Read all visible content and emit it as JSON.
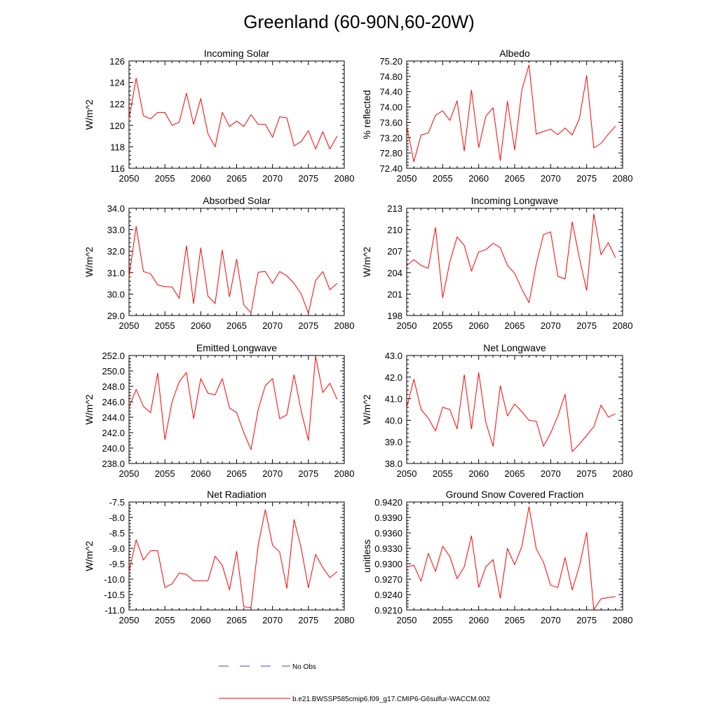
{
  "figure": {
    "title": "Greenland (60-90N,60-20W)",
    "line_color": "#ff0000",
    "obs_color": "#4444cc",
    "legend": {
      "obs_label": "No Obs",
      "model_label": "b.e21.BWSSP585cmip6.f09_g17.CMIP6-G6sulfur-WACCM.002"
    }
  },
  "chart_data": [
    {
      "type": "line",
      "title": "Incoming Solar",
      "ylabel": "W/m^2",
      "xlim": [
        2050,
        2080
      ],
      "ylim": [
        116,
        126
      ],
      "xticks": [
        2050,
        2055,
        2060,
        2065,
        2070,
        2075,
        2080
      ],
      "xtick_labels": [
        "2050",
        "2055",
        "2060",
        "2065",
        "2070",
        "2075",
        "2080"
      ],
      "yticks": [
        116,
        118,
        120,
        122,
        124,
        126
      ],
      "ytick_labels": [
        "116",
        "118",
        "120",
        "122",
        "124",
        "126"
      ],
      "grid": false,
      "x": [
        2050,
        2051,
        2052,
        2053,
        2054,
        2055,
        2056,
        2057,
        2058,
        2059,
        2060,
        2061,
        2062,
        2063,
        2064,
        2065,
        2066,
        2067,
        2068,
        2069,
        2070,
        2071,
        2072,
        2073,
        2074,
        2075,
        2076,
        2077,
        2078,
        2079
      ],
      "series": [
        {
          "name": "b.e21.BWSSP585cmip6.f09_g17.CMIP6-G6sulfur-WACCM.002",
          "values": [
            120.6,
            124.4,
            120.9,
            120.6,
            121.2,
            121.2,
            120.0,
            120.3,
            123.0,
            120.1,
            122.5,
            119.2,
            118.0,
            121.2,
            119.9,
            120.4,
            119.9,
            121.0,
            120.1,
            120.1,
            118.9,
            120.8,
            120.7,
            118.1,
            118.5,
            119.5,
            117.8,
            119.4,
            117.8,
            119.0
          ]
        }
      ]
    },
    {
      "type": "line",
      "title": "Albedo",
      "ylabel": "% reflected",
      "xlim": [
        2050,
        2080
      ],
      "ylim": [
        72.4,
        75.2
      ],
      "xticks": [
        2050,
        2055,
        2060,
        2065,
        2070,
        2075,
        2080
      ],
      "xtick_labels": [
        "2050",
        "2055",
        "2060",
        "2065",
        "2070",
        "2075",
        "2080"
      ],
      "yticks": [
        72.4,
        72.8,
        73.2,
        73.6,
        74.0,
        74.4,
        74.8,
        75.2
      ],
      "ytick_labels": [
        "72.40",
        "72.80",
        "73.20",
        "73.60",
        "74.00",
        "74.40",
        "74.80",
        "75.20"
      ],
      "grid": false,
      "x": [
        2050,
        2051,
        2052,
        2053,
        2054,
        2055,
        2056,
        2057,
        2058,
        2059,
        2060,
        2061,
        2062,
        2063,
        2064,
        2065,
        2066,
        2067,
        2068,
        2069,
        2070,
        2071,
        2072,
        2073,
        2074,
        2075,
        2076,
        2077,
        2078,
        2079
      ],
      "series": [
        {
          "name": "b.e21.BWSSP585cmip6.f09_g17.CMIP6-G6sulfur-WACCM.002",
          "values": [
            73.5,
            72.57,
            73.27,
            73.32,
            73.78,
            73.9,
            73.65,
            74.16,
            72.85,
            74.44,
            72.94,
            73.76,
            73.98,
            72.6,
            74.15,
            72.88,
            74.45,
            75.1,
            73.29,
            73.36,
            73.42,
            73.28,
            73.45,
            73.27,
            73.7,
            74.82,
            72.93,
            73.05,
            73.29,
            73.5
          ]
        }
      ]
    },
    {
      "type": "line",
      "title": "Absorbed Solar",
      "ylabel": "W/m^2",
      "xlim": [
        2050,
        2080
      ],
      "ylim": [
        29.0,
        34.0
      ],
      "xticks": [
        2050,
        2055,
        2060,
        2065,
        2070,
        2075,
        2080
      ],
      "xtick_labels": [
        "2050",
        "2055",
        "2060",
        "2065",
        "2070",
        "2075",
        "2080"
      ],
      "yticks": [
        29,
        30,
        31,
        32,
        33,
        34
      ],
      "ytick_labels": [
        "29.0",
        "30.0",
        "31.0",
        "32.0",
        "33.0",
        "34.0"
      ],
      "grid": false,
      "x": [
        2050,
        2051,
        2052,
        2053,
        2054,
        2055,
        2056,
        2057,
        2058,
        2059,
        2060,
        2061,
        2062,
        2063,
        2064,
        2065,
        2066,
        2067,
        2068,
        2069,
        2070,
        2071,
        2072,
        2073,
        2074,
        2075,
        2076,
        2077,
        2078,
        2079
      ],
      "series": [
        {
          "name": "b.e21.BWSSP585cmip6.f09_g17.CMIP6-G6sulfur-WACCM.002",
          "values": [
            30.8,
            33.15,
            31.05,
            30.95,
            30.42,
            30.35,
            30.33,
            29.8,
            32.25,
            29.56,
            32.15,
            29.9,
            29.56,
            32.05,
            29.88,
            31.62,
            29.5,
            29.12,
            31.02,
            31.05,
            30.5,
            31.05,
            30.85,
            30.5,
            30.0,
            29.1,
            30.63,
            31.05,
            30.2,
            30.5
          ]
        }
      ]
    },
    {
      "type": "line",
      "title": "Incoming Longwave",
      "ylabel": "W/m^2",
      "xlim": [
        2050,
        2080
      ],
      "ylim": [
        198,
        213
      ],
      "xticks": [
        2050,
        2055,
        2060,
        2065,
        2070,
        2075,
        2080
      ],
      "xtick_labels": [
        "2050",
        "2055",
        "2060",
        "2065",
        "2070",
        "2075",
        "2080"
      ],
      "yticks": [
        198,
        201,
        204,
        207,
        210,
        213
      ],
      "ytick_labels": [
        "198",
        "201",
        "204",
        "207",
        "210",
        "213"
      ],
      "grid": false,
      "x": [
        2050,
        2051,
        2052,
        2053,
        2054,
        2055,
        2056,
        2057,
        2058,
        2059,
        2060,
        2061,
        2062,
        2063,
        2064,
        2065,
        2066,
        2067,
        2068,
        2069,
        2070,
        2071,
        2072,
        2073,
        2074,
        2075,
        2076,
        2077,
        2078,
        2079
      ],
      "series": [
        {
          "name": "b.e21.BWSSP585cmip6.f09_g17.CMIP6-G6sulfur-WACCM.002",
          "values": [
            205.0,
            205.8,
            205.0,
            204.6,
            210.3,
            200.5,
            205.5,
            209.0,
            207.8,
            204.2,
            206.9,
            207.2,
            208.1,
            207.5,
            205.0,
            203.9,
            201.7,
            199.8,
            205.2,
            209.3,
            209.7,
            203.5,
            203.1,
            211.1,
            206.0,
            201.5,
            212.2,
            206.5,
            208.2,
            206.1
          ]
        }
      ]
    },
    {
      "type": "line",
      "title": "Emitted Longwave",
      "ylabel": "W/m^2",
      "xlim": [
        2050,
        2080
      ],
      "ylim": [
        238,
        252
      ],
      "xticks": [
        2050,
        2055,
        2060,
        2065,
        2070,
        2075,
        2080
      ],
      "xtick_labels": [
        "2050",
        "2055",
        "2060",
        "2065",
        "2070",
        "2075",
        "2080"
      ],
      "yticks": [
        238,
        240,
        242,
        244,
        246,
        248,
        250,
        252
      ],
      "ytick_labels": [
        "238.0",
        "240.0",
        "242.0",
        "244.0",
        "246.0",
        "248.0",
        "250.0",
        "252.0"
      ],
      "grid": false,
      "x": [
        2050,
        2051,
        2052,
        2053,
        2054,
        2055,
        2056,
        2057,
        2058,
        2059,
        2060,
        2061,
        2062,
        2063,
        2064,
        2065,
        2066,
        2067,
        2068,
        2069,
        2070,
        2071,
        2072,
        2073,
        2074,
        2075,
        2076,
        2077,
        2078,
        2079
      ],
      "series": [
        {
          "name": "b.e21.BWSSP585cmip6.f09_g17.CMIP6-G6sulfur-WACCM.002",
          "values": [
            245.3,
            247.6,
            245.4,
            244.6,
            249.7,
            241.1,
            246.0,
            248.6,
            249.8,
            243.8,
            249.0,
            247.1,
            246.9,
            249.0,
            245.2,
            244.6,
            242.0,
            239.8,
            245.0,
            248.1,
            249.0,
            243.8,
            244.3,
            249.5,
            244.8,
            241.0,
            251.9,
            247.2,
            248.4,
            246.3
          ]
        }
      ]
    },
    {
      "type": "line",
      "title": "Net Longwave",
      "ylabel": "W/m^2",
      "xlim": [
        2050,
        2080
      ],
      "ylim": [
        38.0,
        43.0
      ],
      "xticks": [
        2050,
        2055,
        2060,
        2065,
        2070,
        2075,
        2080
      ],
      "xtick_labels": [
        "2050",
        "2055",
        "2060",
        "2065",
        "2070",
        "2075",
        "2080"
      ],
      "yticks": [
        38,
        39,
        40,
        41,
        42,
        43
      ],
      "ytick_labels": [
        "38.0",
        "39.0",
        "40.0",
        "41.0",
        "42.0",
        "43.0"
      ],
      "grid": false,
      "x": [
        2050,
        2051,
        2052,
        2053,
        2054,
        2055,
        2056,
        2057,
        2058,
        2059,
        2060,
        2061,
        2062,
        2063,
        2064,
        2065,
        2066,
        2067,
        2068,
        2069,
        2070,
        2071,
        2072,
        2073,
        2074,
        2075,
        2076,
        2077,
        2078,
        2079
      ],
      "series": [
        {
          "name": "b.e21.BWSSP585cmip6.f09_g17.CMIP6-G6sulfur-WACCM.002",
          "values": [
            40.6,
            41.9,
            40.5,
            40.1,
            39.5,
            40.6,
            40.5,
            39.6,
            42.1,
            39.6,
            42.2,
            39.9,
            38.8,
            41.6,
            40.2,
            40.75,
            40.4,
            40.0,
            39.95,
            38.8,
            39.4,
            40.2,
            41.2,
            38.55,
            38.9,
            39.3,
            39.7,
            40.7,
            40.15,
            40.3
          ]
        }
      ]
    },
    {
      "type": "line",
      "title": "Net Radiation",
      "ylabel": "W/m^2",
      "xlim": [
        2050,
        2080
      ],
      "ylim": [
        -11.0,
        -7.5
      ],
      "xticks": [
        2050,
        2055,
        2060,
        2065,
        2070,
        2075,
        2080
      ],
      "xtick_labels": [
        "2050",
        "2055",
        "2060",
        "2065",
        "2070",
        "2075",
        "2080"
      ],
      "yticks": [
        -11.0,
        -10.5,
        -10.0,
        -9.5,
        -9.0,
        -8.5,
        -8.0,
        -7.5
      ],
      "ytick_labels": [
        "-11.0",
        "-10.5",
        "-10.0",
        "-9.5",
        "-9.0",
        "-8.5",
        "-8.0",
        "-7.5"
      ],
      "grid": false,
      "x": [
        2050,
        2051,
        2052,
        2053,
        2054,
        2055,
        2056,
        2057,
        2058,
        2059,
        2060,
        2061,
        2062,
        2063,
        2064,
        2065,
        2066,
        2067,
        2068,
        2069,
        2070,
        2071,
        2072,
        2073,
        2074,
        2075,
        2076,
        2077,
        2078,
        2079
      ],
      "series": [
        {
          "name": "b.e21.BWSSP585cmip6.f09_g17.CMIP6-G6sulfur-WACCM.002",
          "values": [
            -9.75,
            -8.72,
            -9.38,
            -9.08,
            -9.08,
            -10.27,
            -10.15,
            -9.8,
            -9.85,
            -10.05,
            -10.05,
            -10.05,
            -9.26,
            -9.55,
            -10.35,
            -9.1,
            -10.9,
            -10.92,
            -8.9,
            -7.75,
            -8.9,
            -9.12,
            -10.3,
            -8.07,
            -9.0,
            -10.28,
            -9.2,
            -9.62,
            -9.95,
            -9.76
          ]
        }
      ]
    },
    {
      "type": "line",
      "title": "Ground Snow Covered Fraction",
      "ylabel": "unitless",
      "xlim": [
        2050,
        2080
      ],
      "ylim": [
        0.921,
        0.942
      ],
      "xticks": [
        2050,
        2055,
        2060,
        2065,
        2070,
        2075,
        2080
      ],
      "xtick_labels": [
        "2050",
        "2055",
        "2060",
        "2065",
        "2070",
        "2075",
        "2080"
      ],
      "yticks": [
        0.921,
        0.924,
        0.927,
        0.93,
        0.933,
        0.936,
        0.939,
        0.942
      ],
      "ytick_labels": [
        "0.9210",
        "0.9240",
        "0.9270",
        "0.9300",
        "0.9330",
        "0.9360",
        "0.9390",
        "0.9420"
      ],
      "grid": false,
      "x": [
        2050,
        2051,
        2052,
        2053,
        2054,
        2055,
        2056,
        2057,
        2058,
        2059,
        2060,
        2061,
        2062,
        2063,
        2064,
        2065,
        2066,
        2067,
        2068,
        2069,
        2070,
        2071,
        2072,
        2073,
        2074,
        2075,
        2076,
        2077,
        2078,
        2079
      ],
      "series": [
        {
          "name": "b.e21.BWSSP585cmip6.f09_g17.CMIP6-G6sulfur-WACCM.002",
          "values": [
            0.9294,
            0.9297,
            0.9266,
            0.932,
            0.9285,
            0.9334,
            0.9314,
            0.9271,
            0.9294,
            0.9354,
            0.9254,
            0.9294,
            0.9308,
            0.9233,
            0.933,
            0.9298,
            0.9334,
            0.9411,
            0.9329,
            0.9303,
            0.9258,
            0.9254,
            0.9312,
            0.9249,
            0.9296,
            0.9361,
            0.9211,
            0.9232,
            0.9234,
            0.9236
          ]
        }
      ]
    }
  ]
}
